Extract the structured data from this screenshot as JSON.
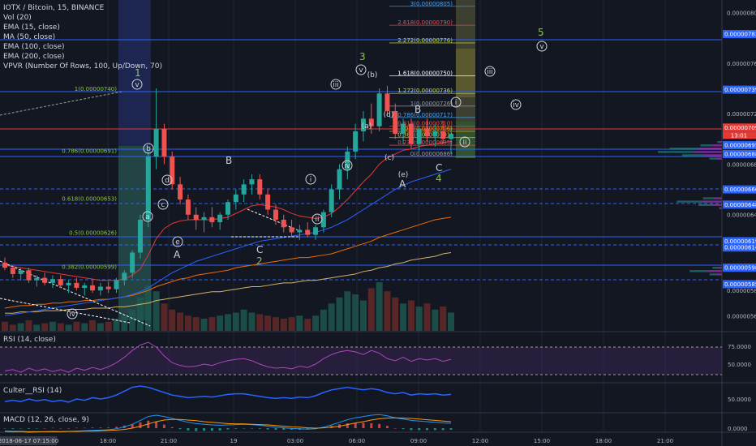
{
  "legend": {
    "title": "IOTX / Bitcoin, 15, BINANCE",
    "vol": "Vol (20)",
    "ema15": "EMA (15, close)",
    "ma50": "MA (50, close)",
    "ema100": "EMA (100, close)",
    "ema200": "EMA (200, close)",
    "vpvr": "VPVR (Number Of Rows, 100, Up/Down, 70)"
  },
  "panels": {
    "rsi_label": "RSI (14, close)",
    "culter_label": "Culter__RSI (14)",
    "macd_label": "MACD (12, 26, close, 9)"
  },
  "colors": {
    "background": "#131722",
    "up": "#26a69a",
    "down": "#ef5350",
    "ema15": "#e53935",
    "ma50": "#2962ff",
    "ema100": "#ef6c00",
    "ema200": "#d4b26a",
    "wave_count": "#8bc34a",
    "fib_line": "#2962ff"
  },
  "price_axis": {
    "ticks": [
      "0.00000800",
      "0.00000760",
      "0.00000720",
      "0.00000680",
      "0.00000640",
      "0.00000600",
      "0.00000580",
      "0.00000560"
    ],
    "highlight_labels": [
      {
        "text": "0.00000783",
        "color": "#2962ff"
      },
      {
        "text": "0.00000739",
        "color": "#2962ff"
      },
      {
        "text": "0.00000709",
        "color": "#e53935"
      },
      {
        "text": "0.00000695",
        "color": "#2962ff"
      },
      {
        "text": "0.00000688",
        "color": "#2962ff"
      },
      {
        "text": "0.00000660",
        "color": "#2962ff"
      },
      {
        "text": "0.00000648",
        "color": "#2962ff"
      },
      {
        "text": "0.00000619",
        "color": "#2962ff"
      },
      {
        "text": "0.00000614",
        "color": "#2962ff"
      },
      {
        "text": "0.00000598",
        "color": "#2962ff"
      },
      {
        "text": "0.00000585",
        "color": "#2962ff"
      }
    ],
    "countdown": "13:01",
    "rsi_ticks": [
      "75.0000",
      "50.0000"
    ],
    "culter_tick": "50.0000",
    "macd_tick": "0.0000"
  },
  "time_axis": {
    "start_label": "2018-06-17 07:15:00",
    "ticks": [
      "18:00",
      "21:00",
      "19",
      "03:00",
      "06:00",
      "09:00",
      "12:00",
      "15:00",
      "18:00",
      "21:00"
    ]
  },
  "fib_left": {
    "levels": [
      {
        "label": "1(0.00000740)",
        "value": 7.4e-06
      },
      {
        "label": "0.786(0.00000691)",
        "value": 6.91e-06
      },
      {
        "label": "0.618(0.00000653)",
        "value": 6.53e-06
      },
      {
        "label": "0.5(0.00000626)",
        "value": 6.26e-06
      },
      {
        "label": "0.382(0.00000599)",
        "value": 5.99e-06
      }
    ]
  },
  "fib_right": {
    "levels": [
      {
        "label": "3(0.00000805)",
        "value": 8.05e-06,
        "color": "#42a5f5"
      },
      {
        "label": "2.618(0.00000790)",
        "value": 7.9e-06,
        "color": "#ef5350"
      },
      {
        "label": "2.272(0.00000776)",
        "value": 7.76e-06,
        "color": "#cddc39"
      },
      {
        "label": "1.618(0.00000750)",
        "value": 7.5e-06,
        "color": "#ffffff"
      },
      {
        "label": "1.272(0.00000736)",
        "value": 7.36e-06,
        "color": "#cddc39"
      },
      {
        "label": "1(0.00000726)",
        "value": 7.26e-06,
        "color": "#9e9e9e"
      },
      {
        "label": "0.786(0.00000717)",
        "value": 7.17e-06,
        "color": "#42a5f5"
      },
      {
        "label": "0.618(0.00000710)",
        "value": 7.1e-06,
        "color": "#ef5350"
      },
      {
        "label": "0.5(0.00000706)",
        "value": 7.06e-06,
        "color": "#ff9800"
      },
      {
        "label": "0.382(0.00000701)",
        "value": 7.01e-06,
        "color": "#cddc39"
      },
      {
        "label": "0.236(0.00000695)",
        "value": 6.95e-06,
        "color": "#ef5350"
      },
      {
        "label": "0(0.00000686)",
        "value": 6.86e-06,
        "color": "#9e9e9e"
      }
    ]
  },
  "wave_labels": {
    "w1": "1",
    "w2": "2",
    "w3": "3",
    "w4": "4",
    "w5": "5",
    "a": "a",
    "b": "b",
    "c": "c",
    "d": "d",
    "e": "e",
    "A": "A",
    "B": "B",
    "C": "C",
    "i": "i",
    "ii": "ii",
    "iii": "iii",
    "iv": "iv",
    "v": "v",
    "pa": "(a)",
    "pb": "(b)",
    "pc": "(c)",
    "pd": "(d)",
    "pe": "(e)"
  },
  "chart_data": {
    "type": "candlestick",
    "symbol": "IOTX / Bitcoin",
    "interval": "15",
    "exchange": "BINANCE",
    "ylim": [
      5.48e-06,
      8.1e-06
    ],
    "candles": [
      [
        6.02e-06,
        6.06e-06,
        5.96e-06,
        5.98e-06
      ],
      [
        5.98e-06,
        6e-06,
        5.9e-06,
        5.93e-06
      ],
      [
        5.93e-06,
        5.98e-06,
        5.88e-06,
        5.96e-06
      ],
      [
        5.96e-06,
        5.98e-06,
        5.86e-06,
        5.88e-06
      ],
      [
        5.88e-06,
        5.92e-06,
        5.83e-06,
        5.9e-06
      ],
      [
        5.9e-06,
        5.94e-06,
        5.84e-06,
        5.86e-06
      ],
      [
        5.86e-06,
        5.92e-06,
        5.82e-06,
        5.89e-06
      ],
      [
        5.89e-06,
        5.92e-06,
        5.82e-06,
        5.84e-06
      ],
      [
        5.84e-06,
        5.88e-06,
        5.78e-06,
        5.86e-06
      ],
      [
        5.86e-06,
        5.9e-06,
        5.8e-06,
        5.82e-06
      ],
      [
        5.82e-06,
        5.86e-06,
        5.76e-06,
        5.84e-06
      ],
      [
        5.84e-06,
        5.88e-06,
        5.78e-06,
        5.8e-06
      ],
      [
        5.8e-06,
        5.86e-06,
        5.76e-06,
        5.83e-06
      ],
      [
        5.83e-06,
        5.87e-06,
        5.78e-06,
        5.81e-06
      ],
      [
        5.81e-06,
        5.9e-06,
        5.78e-06,
        5.88e-06
      ],
      [
        5.88e-06,
        5.96e-06,
        5.84e-06,
        5.94e-06
      ],
      [
        5.94e-06,
        6.12e-06,
        5.9e-06,
        6.1e-06
      ],
      [
        6.1e-06,
        6.4e-06,
        6.05e-06,
        6.36e-06
      ],
      [
        6.36e-06,
        6.9e-06,
        6.3e-06,
        6.86e-06
      ],
      [
        6.86e-06,
        7.4e-06,
        6.76e-06,
        7.08e-06
      ],
      [
        7.08e-06,
        7.12e-06,
        6.8e-06,
        6.86e-06
      ],
      [
        6.86e-06,
        6.9e-06,
        6.6e-06,
        6.64e-06
      ],
      [
        6.64e-06,
        6.7e-06,
        6.48e-06,
        6.52e-06
      ],
      [
        6.52e-06,
        6.56e-06,
        6.36e-06,
        6.4e-06
      ],
      [
        6.4e-06,
        6.46e-06,
        6.28e-06,
        6.36e-06
      ],
      [
        6.36e-06,
        6.42e-06,
        6.26e-06,
        6.38e-06
      ],
      [
        6.38e-06,
        6.46e-06,
        6.3e-06,
        6.34e-06
      ],
      [
        6.34e-06,
        6.42e-06,
        6.28e-06,
        6.4e-06
      ],
      [
        6.4e-06,
        6.52e-06,
        6.36e-06,
        6.5e-06
      ],
      [
        6.5e-06,
        6.6e-06,
        6.44e-06,
        6.56e-06
      ],
      [
        6.56e-06,
        6.68e-06,
        6.5e-06,
        6.64e-06
      ],
      [
        6.64e-06,
        6.72e-06,
        6.56e-06,
        6.68e-06
      ],
      [
        6.68e-06,
        6.72e-06,
        6.52e-06,
        6.56e-06
      ],
      [
        6.56e-06,
        6.6e-06,
        6.4e-06,
        6.44e-06
      ],
      [
        6.44e-06,
        6.48e-06,
        6.32e-06,
        6.36e-06
      ],
      [
        6.36e-06,
        6.4e-06,
        6.26e-06,
        6.3e-06
      ],
      [
        6.3e-06,
        6.36e-06,
        6.22e-06,
        6.26e-06
      ],
      [
        6.26e-06,
        6.32e-06,
        6.2e-06,
        6.28e-06
      ],
      [
        6.28e-06,
        6.34e-06,
        6.22e-06,
        6.24e-06
      ],
      [
        6.24e-06,
        6.32e-06,
        6.2e-06,
        6.3e-06
      ],
      [
        6.3e-06,
        6.44e-06,
        6.26e-06,
        6.42e-06
      ],
      [
        6.42e-06,
        6.64e-06,
        6.38e-06,
        6.6e-06
      ],
      [
        6.6e-06,
        6.8e-06,
        6.52e-06,
        6.76e-06
      ],
      [
        6.76e-06,
        6.94e-06,
        6.68e-06,
        6.9e-06
      ],
      [
        6.9e-06,
        7.12e-06,
        6.84e-06,
        7.06e-06
      ],
      [
        7.06e-06,
        7.22e-06,
        6.98e-06,
        7.16e-06
      ],
      [
        7.16e-06,
        7.28e-06,
        7.04e-06,
        7.1e-06
      ],
      [
        7.1e-06,
        7.4e-06,
        7.06e-06,
        7.36e-06
      ],
      [
        7.36e-06,
        7.42e-06,
        7.18e-06,
        7.22e-06
      ],
      [
        7.22e-06,
        7.28e-06,
        7e-06,
        7.04e-06
      ],
      [
        7.04e-06,
        7.16e-06,
        6.96e-06,
        7.12e-06
      ],
      [
        7.12e-06,
        7.16e-06,
        6.92e-06,
        6.96e-06
      ],
      [
        6.96e-06,
        7.1e-06,
        6.9e-06,
        7.08e-06
      ],
      [
        7.08e-06,
        7.16e-06,
        6.98e-06,
        7.02e-06
      ],
      [
        7.02e-06,
        7.12e-06,
        6.94e-06,
        7.06e-06
      ],
      [
        7.06e-06,
        7.14e-06,
        6.96e-06,
        7e-06
      ],
      [
        7e-06,
        7.1e-06,
        6.88e-06,
        7.04e-06
      ]
    ],
    "volume": [
      6,
      4,
      5,
      7,
      4,
      5,
      6,
      5,
      4,
      6,
      5,
      7,
      5,
      6,
      8,
      10,
      14,
      22,
      30,
      26,
      18,
      14,
      12,
      10,
      9,
      8,
      9,
      10,
      11,
      12,
      14,
      12,
      11,
      10,
      9,
      8,
      9,
      10,
      8,
      10,
      14,
      18,
      22,
      26,
      24,
      20,
      28,
      32,
      26,
      22,
      18,
      20,
      16,
      18,
      14,
      16,
      12
    ],
    "ema15": [
      6e-06,
      5.99e-06,
      5.98e-06,
      5.97e-06,
      5.96e-06,
      5.95e-06,
      5.94e-06,
      5.93e-06,
      5.92e-06,
      5.91e-06,
      5.9e-06,
      5.89e-06,
      5.88e-06,
      5.88e-06,
      5.88e-06,
      5.89e-06,
      5.92e-06,
      5.97e-06,
      6.08e-06,
      6.21e-06,
      6.29e-06,
      6.33e-06,
      6.35e-06,
      6.36e-06,
      6.36e-06,
      6.36e-06,
      6.36e-06,
      6.37e-06,
      6.38e-06,
      6.41e-06,
      6.44e-06,
      6.47e-06,
      6.48e-06,
      6.47e-06,
      6.46e-06,
      6.44e-06,
      6.41e-06,
      6.39e-06,
      6.38e-06,
      6.37e-06,
      6.38e-06,
      6.41e-06,
      6.46e-06,
      6.52e-06,
      6.59e-06,
      6.66e-06,
      6.72e-06,
      6.8e-06,
      6.85e-06,
      6.88e-06,
      6.91e-06,
      6.92e-06,
      6.94e-06,
      6.95e-06,
      6.96e-06,
      6.97e-06,
      6.98e-06
    ],
    "ma50": [
      5.6e-06,
      5.61e-06,
      5.62e-06,
      5.63e-06,
      5.64e-06,
      5.65e-06,
      5.66e-06,
      5.67e-06,
      5.68e-06,
      5.69e-06,
      5.7e-06,
      5.71e-06,
      5.72e-06,
      5.73e-06,
      5.74e-06,
      5.75e-06,
      5.77e-06,
      5.79e-06,
      5.82e-06,
      5.86e-06,
      5.9e-06,
      5.94e-06,
      5.97e-06,
      6e-06,
      6.03e-06,
      6.05e-06,
      6.07e-06,
      6.09e-06,
      6.11e-06,
      6.13e-06,
      6.15e-06,
      6.17e-06,
      6.19e-06,
      6.2e-06,
      6.21e-06,
      6.22e-06,
      6.23e-06,
      6.24e-06,
      6.25e-06,
      6.26e-06,
      6.28e-06,
      6.3e-06,
      6.33e-06,
      6.36e-06,
      6.4e-06,
      6.44e-06,
      6.48e-06,
      6.52e-06,
      6.56e-06,
      6.6e-06,
      6.63e-06,
      6.66e-06,
      6.68e-06,
      6.7e-06,
      6.72e-06,
      6.74e-06,
      6.76e-06
    ],
    "ema100": [
      5.66e-06,
      5.67e-06,
      5.68e-06,
      5.68e-06,
      5.69e-06,
      5.69e-06,
      5.7e-06,
      5.7e-06,
      5.71e-06,
      5.71e-06,
      5.72e-06,
      5.72e-06,
      5.73e-06,
      5.73e-06,
      5.74e-06,
      5.75e-06,
      5.76e-06,
      5.78e-06,
      5.8e-06,
      5.83e-06,
      5.85e-06,
      5.87e-06,
      5.89e-06,
      5.9e-06,
      5.92e-06,
      5.93e-06,
      5.94e-06,
      5.95e-06,
      5.96e-06,
      5.98e-06,
      5.99e-06,
      6e-06,
      6.01e-06,
      6.02e-06,
      6.03e-06,
      6.04e-06,
      6.05e-06,
      6.06e-06,
      6.06e-06,
      6.07e-06,
      6.08e-06,
      6.09e-06,
      6.11e-06,
      6.13e-06,
      6.15e-06,
      6.17e-06,
      6.19e-06,
      6.22e-06,
      6.24e-06,
      6.26e-06,
      6.28e-06,
      6.3e-06,
      6.32e-06,
      6.34e-06,
      6.36e-06,
      6.37e-06,
      6.38e-06
    ],
    "ema200": [
      5.62e-06,
      5.62e-06,
      5.63e-06,
      5.63e-06,
      5.63e-06,
      5.64e-06,
      5.64e-06,
      5.64e-06,
      5.65e-06,
      5.65e-06,
      5.65e-06,
      5.66e-06,
      5.66e-06,
      5.66e-06,
      5.67e-06,
      5.67e-06,
      5.68e-06,
      5.69e-06,
      5.7e-06,
      5.72e-06,
      5.73e-06,
      5.74e-06,
      5.75e-06,
      5.76e-06,
      5.77e-06,
      5.78e-06,
      5.79e-06,
      5.79e-06,
      5.8e-06,
      5.81e-06,
      5.82e-06,
      5.83e-06,
      5.83e-06,
      5.84e-06,
      5.85e-06,
      5.86e-06,
      5.86e-06,
      5.87e-06,
      5.88e-06,
      5.88e-06,
      5.89e-06,
      5.9e-06,
      5.91e-06,
      5.92e-06,
      5.93e-06,
      5.95e-06,
      5.96e-06,
      5.98e-06,
      5.99e-06,
      6.01e-06,
      6.02e-06,
      6.04e-06,
      6.05e-06,
      6.06e-06,
      6.07e-06,
      6.09e-06,
      6.1e-06
    ],
    "rsi": [
      40,
      42,
      38,
      44,
      40,
      43,
      39,
      42,
      38,
      44,
      41,
      45,
      42,
      46,
      52,
      60,
      70,
      78,
      82,
      75,
      62,
      52,
      48,
      46,
      47,
      50,
      48,
      52,
      55,
      57,
      58,
      55,
      50,
      46,
      44,
      45,
      43,
      47,
      45,
      50,
      58,
      64,
      68,
      70,
      68,
      64,
      70,
      66,
      58,
      55,
      60,
      54,
      58,
      56,
      58,
      54,
      57
    ],
    "culter_rsi": [
      46,
      48,
      46,
      50,
      47,
      49,
      46,
      48,
      45,
      50,
      48,
      52,
      50,
      52,
      56,
      62,
      68,
      70,
      68,
      64,
      60,
      56,
      54,
      52,
      53,
      54,
      53,
      55,
      57,
      58,
      58,
      56,
      54,
      52,
      51,
      52,
      51,
      53,
      52,
      55,
      60,
      64,
      66,
      68,
      66,
      64,
      66,
      64,
      60,
      58,
      60,
      56,
      58,
      57,
      58,
      56,
      57
    ],
    "macd": [
      -1,
      -1.2,
      -1.1,
      -1.3,
      -1.2,
      -1.1,
      -1,
      -1.1,
      -1,
      -0.9,
      -0.8,
      -0.7,
      -0.6,
      -0.5,
      -0.2,
      0.4,
      1.2,
      2.4,
      3.6,
      4,
      3.6,
      3,
      2.4,
      1.8,
      1.4,
      1.2,
      1,
      0.9,
      1,
      1.1,
      1.2,
      1.1,
      0.9,
      0.6,
      0.3,
      0.1,
      -0.1,
      -0.2,
      -0.3,
      -0.2,
      0.3,
      1,
      1.8,
      2.6,
      3.2,
      3.6,
      4,
      4.2,
      3.8,
      3.2,
      2.8,
      2.4,
      2.2,
      2,
      1.8,
      1.6,
      1.5
    ],
    "macd_signal": [
      -0.9,
      -1,
      -1,
      -1.1,
      -1.1,
      -1.1,
      -1.1,
      -1.1,
      -1,
      -1,
      -0.9,
      -0.9,
      -0.8,
      -0.7,
      -0.6,
      -0.4,
      0,
      0.6,
      1.3,
      2,
      2.5,
      2.7,
      2.7,
      2.5,
      2.3,
      2,
      1.8,
      1.6,
      1.4,
      1.3,
      1.3,
      1.2,
      1.1,
      1,
      0.8,
      0.6,
      0.4,
      0.3,
      0.1,
      0,
      0.1,
      0.3,
      0.6,
      1.1,
      1.6,
      2,
      2.5,
      2.9,
      3.1,
      3.2,
      3.1,
      3,
      2.8,
      2.6,
      2.4,
      2.2,
      2
    ]
  }
}
